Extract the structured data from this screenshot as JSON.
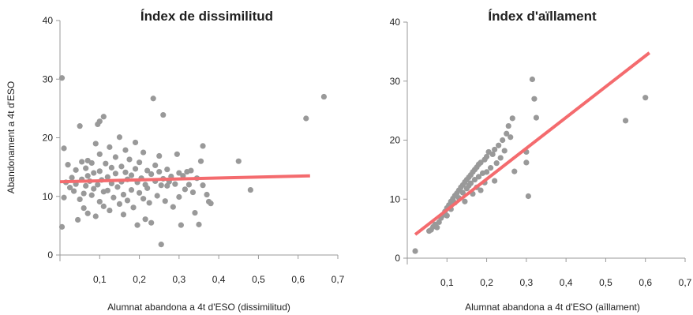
{
  "chart_data": [
    {
      "type": "scatter",
      "title": "Índex de dissimilitud",
      "xlabel": "Alumnat abandona a 4t d'ESO (dissimilitud)",
      "ylabel": "Abandonament a 4t d'ESO",
      "xlim": [
        0,
        0.7
      ],
      "ylim": [
        0,
        40
      ],
      "xticks": [
        "0,1",
        "0,2",
        "0,3",
        "0,4",
        "0,5",
        "0,6",
        "0,7"
      ],
      "yticks": [
        "0",
        "10",
        "20",
        "30",
        "40"
      ],
      "grid": false,
      "point_color": "#999999",
      "fit_line": {
        "color": "#f46b6e",
        "x": [
          0,
          0.63
        ],
        "y": [
          12.5,
          13.5
        ]
      },
      "points": [
        [
          0.005,
          30.2
        ],
        [
          0.005,
          4.8
        ],
        [
          0.01,
          18.2
        ],
        [
          0.01,
          9.8
        ],
        [
          0.015,
          12.4
        ],
        [
          0.02,
          15.4
        ],
        [
          0.025,
          11.5
        ],
        [
          0.03,
          13.2
        ],
        [
          0.035,
          10.9
        ],
        [
          0.04,
          12.1
        ],
        [
          0.04,
          14.5
        ],
        [
          0.045,
          6.0
        ],
        [
          0.05,
          22.0
        ],
        [
          0.05,
          9.5
        ],
        [
          0.055,
          15.9
        ],
        [
          0.055,
          12.9
        ],
        [
          0.06,
          10.5
        ],
        [
          0.06,
          8.0
        ],
        [
          0.065,
          14.8
        ],
        [
          0.065,
          11.8
        ],
        [
          0.07,
          16.1
        ],
        [
          0.07,
          13.5
        ],
        [
          0.07,
          7.1
        ],
        [
          0.075,
          12.6
        ],
        [
          0.08,
          15.7
        ],
        [
          0.08,
          10.2
        ],
        [
          0.085,
          14.0
        ],
        [
          0.085,
          11.3
        ],
        [
          0.09,
          19.0
        ],
        [
          0.09,
          6.6
        ],
        [
          0.095,
          22.3
        ],
        [
          0.095,
          12.0
        ],
        [
          0.1,
          22.8
        ],
        [
          0.1,
          17.2
        ],
        [
          0.1,
          14.3
        ],
        [
          0.1,
          9.1
        ],
        [
          0.105,
          12.8
        ],
        [
          0.11,
          23.6
        ],
        [
          0.11,
          10.8
        ],
        [
          0.11,
          8.3
        ],
        [
          0.115,
          15.6
        ],
        [
          0.12,
          13.3
        ],
        [
          0.12,
          11.0
        ],
        [
          0.125,
          18.4
        ],
        [
          0.125,
          7.6
        ],
        [
          0.13,
          14.9
        ],
        [
          0.13,
          12.2
        ],
        [
          0.135,
          9.8
        ],
        [
          0.14,
          16.7
        ],
        [
          0.14,
          13.9
        ],
        [
          0.145,
          11.6
        ],
        [
          0.15,
          20.1
        ],
        [
          0.15,
          8.7
        ],
        [
          0.155,
          15.1
        ],
        [
          0.155,
          12.5
        ],
        [
          0.16,
          10.3
        ],
        [
          0.16,
          6.9
        ],
        [
          0.165,
          17.9
        ],
        [
          0.165,
          14.1
        ],
        [
          0.17,
          12.9
        ],
        [
          0.17,
          9.3
        ],
        [
          0.175,
          16.3
        ],
        [
          0.18,
          13.6
        ],
        [
          0.18,
          11.1
        ],
        [
          0.185,
          8.1
        ],
        [
          0.19,
          19.2
        ],
        [
          0.19,
          14.7
        ],
        [
          0.195,
          12.4
        ],
        [
          0.195,
          5.1
        ],
        [
          0.2,
          15.8
        ],
        [
          0.2,
          10.6
        ],
        [
          0.205,
          13.1
        ],
        [
          0.21,
          17.5
        ],
        [
          0.21,
          9.6
        ],
        [
          0.215,
          12.0
        ],
        [
          0.215,
          6.1
        ],
        [
          0.22,
          14.4
        ],
        [
          0.22,
          11.4
        ],
        [
          0.225,
          8.9
        ],
        [
          0.23,
          13.8
        ],
        [
          0.23,
          5.5
        ],
        [
          0.235,
          26.7
        ],
        [
          0.24,
          15.3
        ],
        [
          0.24,
          12.6
        ],
        [
          0.245,
          10.1
        ],
        [
          0.25,
          14.2
        ],
        [
          0.25,
          16.9
        ],
        [
          0.255,
          11.9
        ],
        [
          0.255,
          1.8
        ],
        [
          0.26,
          23.9
        ],
        [
          0.26,
          13.0
        ],
        [
          0.265,
          9.2
        ],
        [
          0.27,
          14.6
        ],
        [
          0.27,
          11.8
        ],
        [
          0.275,
          12.5
        ],
        [
          0.28,
          13.4
        ],
        [
          0.285,
          8.2
        ],
        [
          0.29,
          12.1
        ],
        [
          0.295,
          17.2
        ],
        [
          0.3,
          14.0
        ],
        [
          0.3,
          9.9
        ],
        [
          0.305,
          5.1
        ],
        [
          0.31,
          13.5
        ],
        [
          0.315,
          11.2
        ],
        [
          0.32,
          14.2
        ],
        [
          0.325,
          12.0
        ],
        [
          0.33,
          14.4
        ],
        [
          0.335,
          10.7
        ],
        [
          0.34,
          7.2
        ],
        [
          0.345,
          13.1
        ],
        [
          0.35,
          5.2
        ],
        [
          0.355,
          16.0
        ],
        [
          0.36,
          18.6
        ],
        [
          0.36,
          11.9
        ],
        [
          0.37,
          10.3
        ],
        [
          0.375,
          9.1
        ],
        [
          0.38,
          8.8
        ],
        [
          0.45,
          16.0
        ],
        [
          0.48,
          11.1
        ],
        [
          0.62,
          23.3
        ],
        [
          0.665,
          27.0
        ]
      ]
    },
    {
      "type": "scatter",
      "title": "Índex d'aïllament",
      "xlabel": "Alumnat abandona a 4t d'ESO (aïllament)",
      "xlim": [
        0,
        0.7
      ],
      "ylim": [
        0,
        40
      ],
      "xticks": [
        "0,1",
        "0,2",
        "0,3",
        "0,4",
        "0,5",
        "0,6",
        "0,7"
      ],
      "yticks": [
        "0",
        "10",
        "20",
        "30",
        "40"
      ],
      "grid": false,
      "point_color": "#999999",
      "fit_line": {
        "color": "#f46b6e",
        "x": [
          0.02,
          0.61
        ],
        "y": [
          4.0,
          34.8
        ]
      },
      "points": [
        [
          0.02,
          1.2
        ],
        [
          0.055,
          4.6
        ],
        [
          0.06,
          4.8
        ],
        [
          0.065,
          5.3
        ],
        [
          0.07,
          5.7
        ],
        [
          0.075,
          5.2
        ],
        [
          0.08,
          6.1
        ],
        [
          0.085,
          6.8
        ],
        [
          0.09,
          7.3
        ],
        [
          0.095,
          7.9
        ],
        [
          0.1,
          8.5
        ],
        [
          0.1,
          7.2
        ],
        [
          0.105,
          9.0
        ],
        [
          0.11,
          9.6
        ],
        [
          0.11,
          8.3
        ],
        [
          0.115,
          10.1
        ],
        [
          0.12,
          10.6
        ],
        [
          0.12,
          9.4
        ],
        [
          0.125,
          11.0
        ],
        [
          0.13,
          11.5
        ],
        [
          0.13,
          10.2
        ],
        [
          0.135,
          12.0
        ],
        [
          0.14,
          12.4
        ],
        [
          0.14,
          11.1
        ],
        [
          0.145,
          12.9
        ],
        [
          0.145,
          9.6
        ],
        [
          0.15,
          13.3
        ],
        [
          0.15,
          11.8
        ],
        [
          0.155,
          13.7
        ],
        [
          0.155,
          12.3
        ],
        [
          0.16,
          14.1
        ],
        [
          0.16,
          12.7
        ],
        [
          0.165,
          14.6
        ],
        [
          0.165,
          10.9
        ],
        [
          0.17,
          15.0
        ],
        [
          0.17,
          13.3
        ],
        [
          0.175,
          15.4
        ],
        [
          0.175,
          12.0
        ],
        [
          0.18,
          15.9
        ],
        [
          0.18,
          13.8
        ],
        [
          0.185,
          16.2
        ],
        [
          0.185,
          11.5
        ],
        [
          0.19,
          14.4
        ],
        [
          0.195,
          16.7
        ],
        [
          0.195,
          12.8
        ],
        [
          0.2,
          17.2
        ],
        [
          0.2,
          14.6
        ],
        [
          0.205,
          18.0
        ],
        [
          0.21,
          15.3
        ],
        [
          0.215,
          17.6
        ],
        [
          0.22,
          18.4
        ],
        [
          0.22,
          13.1
        ],
        [
          0.225,
          16.1
        ],
        [
          0.23,
          19.1
        ],
        [
          0.235,
          17.0
        ],
        [
          0.24,
          20.0
        ],
        [
          0.245,
          18.2
        ],
        [
          0.25,
          21.1
        ],
        [
          0.255,
          22.4
        ],
        [
          0.26,
          20.5
        ],
        [
          0.265,
          23.7
        ],
        [
          0.27,
          14.7
        ],
        [
          0.3,
          18.0
        ],
        [
          0.3,
          16.2
        ],
        [
          0.305,
          10.5
        ],
        [
          0.315,
          30.3
        ],
        [
          0.32,
          27.0
        ],
        [
          0.325,
          23.8
        ],
        [
          0.55,
          23.3
        ],
        [
          0.6,
          27.2
        ]
      ]
    }
  ]
}
